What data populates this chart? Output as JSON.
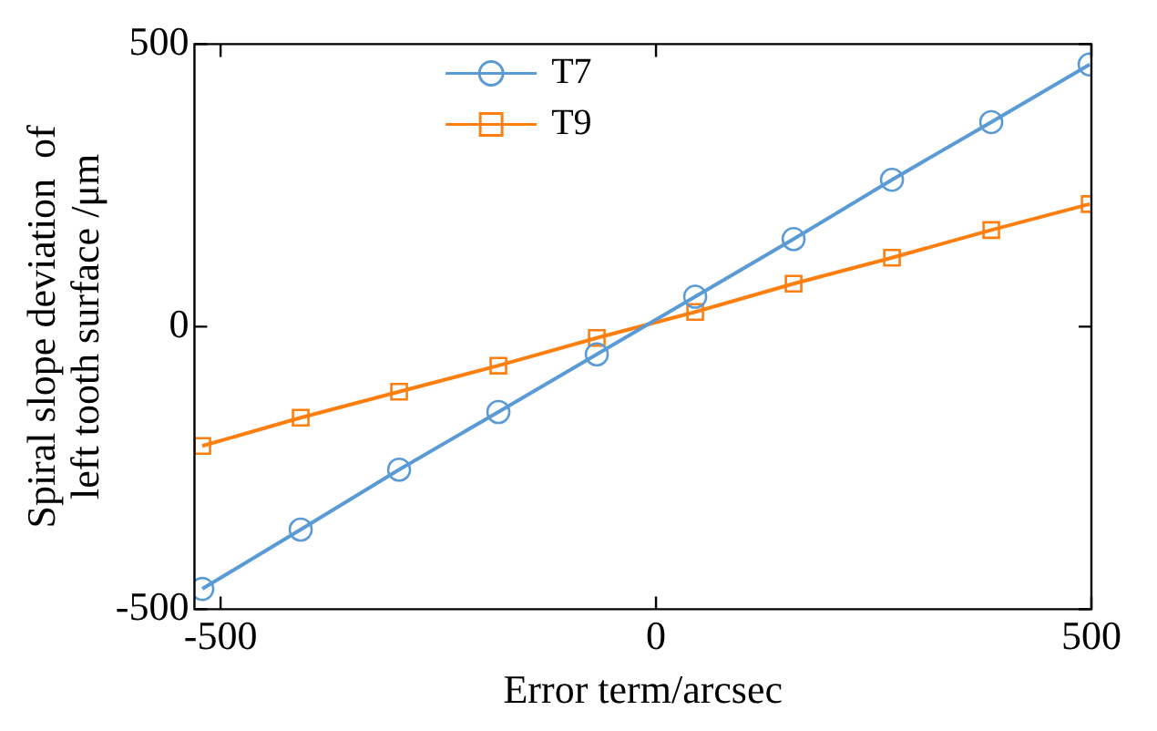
{
  "chart_data": {
    "type": "line",
    "xlabel": "Error term/arcsec",
    "ylabel": "Spiral slope deviation  of\nleft tooth surface /μm",
    "xlim": [
      -530,
      500
    ],
    "ylim": [
      -500,
      500
    ],
    "xticks": [
      -500,
      0,
      500
    ],
    "yticks": [
      -500,
      0,
      500
    ],
    "grid": false,
    "legend": "top",
    "line_style": "solid",
    "x": [
      -521,
      -408,
      -295,
      -181,
      -68,
      45,
      158,
      271,
      385,
      498
    ],
    "series": [
      {
        "name": "T7",
        "color": "#5b9bd5",
        "marker": "circle",
        "values": [
          -464,
          -359,
          -253,
          -151,
          -49,
          53,
          155,
          260,
          362,
          464
        ]
      },
      {
        "name": "T9",
        "color": "#ff7f0e",
        "marker": "square",
        "values": [
          -211,
          -161,
          -115,
          -69,
          -20,
          26,
          76,
          122,
          171,
          217
        ]
      }
    ]
  }
}
